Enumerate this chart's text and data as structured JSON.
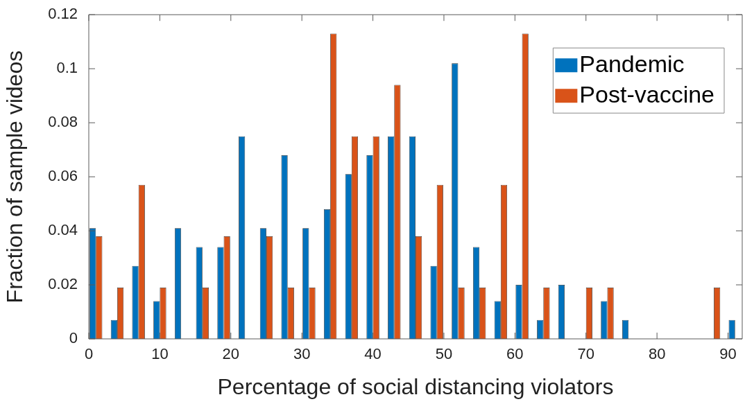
{
  "chart_data": {
    "type": "bar",
    "xlabel": "Percentage of social distancing violators",
    "ylabel": "Fraction of sample videos",
    "x": [
      1,
      4,
      7,
      10,
      13,
      16,
      19,
      22,
      25,
      28,
      31,
      34,
      37,
      40,
      43,
      46,
      49,
      52,
      55,
      58,
      61,
      64,
      67,
      70,
      73,
      76,
      79,
      82,
      85,
      88,
      91
    ],
    "series": [
      {
        "name": "Pandemic",
        "color": "#0072bd",
        "values": [
          0.041,
          0.007,
          0.027,
          0.014,
          0.041,
          0.034,
          0.034,
          0.075,
          0.041,
          0.068,
          0.041,
          0.048,
          0.061,
          0.068,
          0.075,
          0.075,
          0.027,
          0.102,
          0.034,
          0.014,
          0.02,
          0.007,
          0.02,
          0,
          0.014,
          0.007,
          0,
          0,
          0,
          0,
          0.007
        ]
      },
      {
        "name": "Post-vaccine",
        "color": "#d95319",
        "values": [
          0.038,
          0.019,
          0.057,
          0.019,
          0,
          0.019,
          0.038,
          0,
          0.038,
          0.019,
          0.019,
          0.113,
          0.075,
          0.075,
          0.094,
          0.038,
          0.057,
          0.019,
          0.019,
          0.057,
          0.113,
          0.019,
          0,
          0.019,
          0.019,
          0,
          0,
          0,
          0,
          0.019,
          0
        ]
      }
    ],
    "xlim": [
      0,
      92
    ],
    "xticks": [
      0,
      10,
      20,
      30,
      40,
      50,
      60,
      70,
      80,
      90
    ],
    "ylim": [
      0,
      0.12
    ],
    "yticks": [
      0,
      0.02,
      0.04,
      0.06,
      0.08,
      0.1,
      0.12
    ],
    "grid": false,
    "legend": "top right"
  }
}
